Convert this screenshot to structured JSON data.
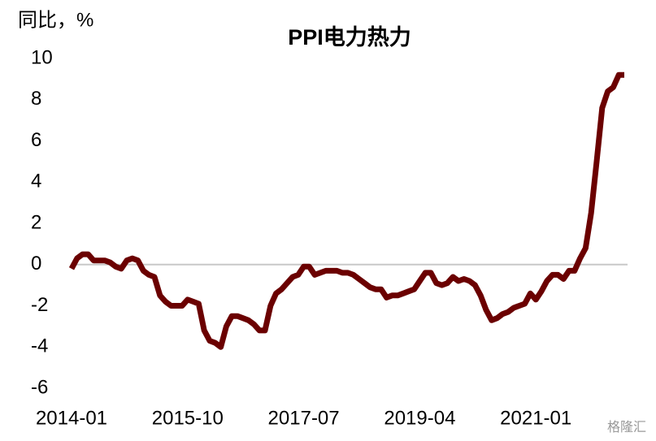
{
  "chart_data": {
    "type": "line",
    "title": "PPI电力热力",
    "y_label": "同比，%",
    "watermark": "格隆汇",
    "categories": [
      "2014-01",
      null,
      null,
      null,
      null,
      null,
      null,
      null,
      null,
      null,
      null,
      null,
      null,
      null,
      null,
      null,
      null,
      null,
      null,
      null,
      null,
      "2015-10",
      null,
      null,
      null,
      null,
      null,
      null,
      null,
      null,
      null,
      null,
      null,
      null,
      null,
      null,
      null,
      null,
      null,
      null,
      null,
      null,
      "2017-07",
      null,
      null,
      null,
      null,
      null,
      null,
      null,
      null,
      null,
      null,
      null,
      null,
      null,
      null,
      null,
      null,
      null,
      null,
      null,
      null,
      "2019-04",
      null,
      null,
      null,
      null,
      null,
      null,
      null,
      null,
      null,
      null,
      null,
      null,
      null,
      null,
      null,
      null,
      null,
      null,
      null,
      null,
      "2021-01",
      null,
      null,
      null,
      null,
      null,
      null,
      null,
      null,
      null,
      null,
      null,
      null,
      null,
      null,
      null,
      null
    ],
    "series": [
      {
        "name": "PPI电力热力",
        "color": "#6b0000",
        "values": [
          -0.2,
          0.3,
          0.5,
          0.5,
          0.2,
          0.2,
          0.2,
          0.1,
          -0.1,
          -0.2,
          0.2,
          0.3,
          0.2,
          -0.3,
          -0.5,
          -0.6,
          -1.5,
          -1.8,
          -2.0,
          -2.0,
          -2.0,
          -1.7,
          -1.8,
          -1.9,
          -3.2,
          -3.7,
          -3.8,
          -4.0,
          -3.0,
          -2.5,
          -2.5,
          -2.6,
          -2.7,
          -2.9,
          -3.2,
          -3.2,
          -2.0,
          -1.4,
          -1.2,
          -0.9,
          -0.6,
          -0.5,
          -0.1,
          -0.1,
          -0.5,
          -0.4,
          -0.3,
          -0.3,
          -0.3,
          -0.4,
          -0.4,
          -0.5,
          -0.7,
          -0.9,
          -1.1,
          -1.2,
          -1.2,
          -1.6,
          -1.5,
          -1.5,
          -1.4,
          -1.3,
          -1.2,
          -0.8,
          -0.4,
          -0.4,
          -0.9,
          -1.0,
          -0.9,
          -0.6,
          -0.8,
          -0.7,
          -0.8,
          -1.0,
          -1.5,
          -2.2,
          -2.7,
          -2.6,
          -2.4,
          -2.3,
          -2.1,
          -2.0,
          -1.9,
          -1.4,
          -1.7,
          -1.3,
          -0.8,
          -0.5,
          -0.5,
          -0.7,
          -0.3,
          -0.3,
          0.3,
          0.8,
          2.5,
          5.0,
          7.6,
          8.4,
          8.6,
          9.2,
          9.2
        ]
      }
    ],
    "ylim": [
      -6,
      10
    ],
    "yticks": [
      -6,
      -4,
      -2,
      0,
      2,
      4,
      6,
      8,
      10
    ],
    "zero_line": true,
    "grid": false
  }
}
